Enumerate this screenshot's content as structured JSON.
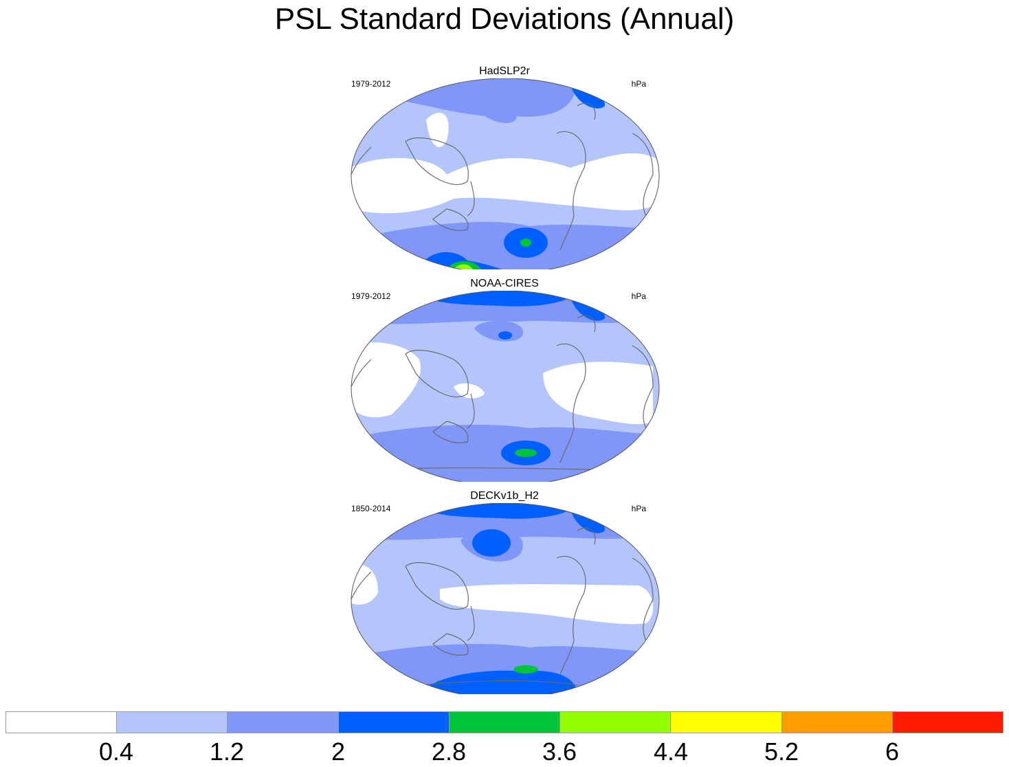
{
  "title": "PSL Standard Deviations (Annual)",
  "panels": [
    {
      "name": "HadSLP2r",
      "years": "1979-2012",
      "units": "hPa"
    },
    {
      "name": "NOAA-CIRES",
      "years": "1979-2012",
      "units": "hPa"
    },
    {
      "name": "DECKv1b_H2",
      "years": "1850-2014",
      "units": "hPa"
    }
  ],
  "colorbar": {
    "labels": [
      "0.4",
      "1.2",
      "2",
      "2.8",
      "3.6",
      "4.4",
      "5.2",
      "6"
    ],
    "colors": [
      "#ffffff",
      "#b4c5fb",
      "#8096f9",
      "#0060ff",
      "#00c43a",
      "#94ff00",
      "#ffff00",
      "#ff9d00",
      "#ff1a00"
    ]
  },
  "legend": {
    "white": "#ffffff",
    "light_blue": "#b4c5fb",
    "blue": "#8096f9",
    "dark_blue": "#0060ff",
    "green": "#00c43a",
    "lime": "#94ff00"
  }
}
